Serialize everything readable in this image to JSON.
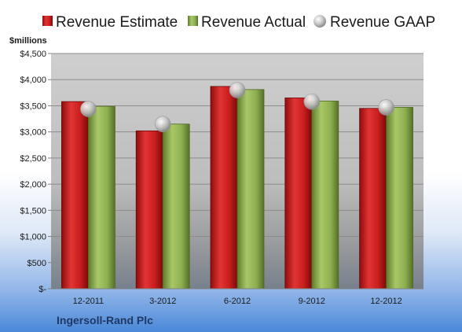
{
  "chart_data": {
    "type": "bar",
    "title": "",
    "xlabel": "",
    "ylabel": "$millions",
    "ylim": [
      0,
      4500
    ],
    "yticks": [
      0,
      500,
      1000,
      1500,
      2000,
      2500,
      3000,
      3500,
      4000,
      4500
    ],
    "ytick_labels": [
      "$-",
      "$500",
      "$1,000",
      "$1,500",
      "$2,000",
      "$2,500",
      "$3,000",
      "$3,500",
      "$4,000",
      "$4,500"
    ],
    "categories": [
      "12-2011",
      "3-2012",
      "6-2012",
      "9-2012",
      "12-2012"
    ],
    "series": [
      {
        "name": "Revenue Estimate",
        "type": "bar",
        "color": "#c81e1e",
        "values": [
          3580,
          3020,
          3870,
          3650,
          3450
        ]
      },
      {
        "name": "Revenue Actual",
        "type": "bar",
        "color": "#8fb050",
        "values": [
          3490,
          3150,
          3810,
          3590,
          3470
        ]
      },
      {
        "name": "Revenue GAAP",
        "type": "scatter",
        "color": "#c8c8c8",
        "values": [
          3440,
          3150,
          3800,
          3580,
          3470
        ]
      }
    ],
    "legend_position": "top",
    "grid": true
  },
  "footer": {
    "company": "Ingersoll-Rand Plc"
  }
}
